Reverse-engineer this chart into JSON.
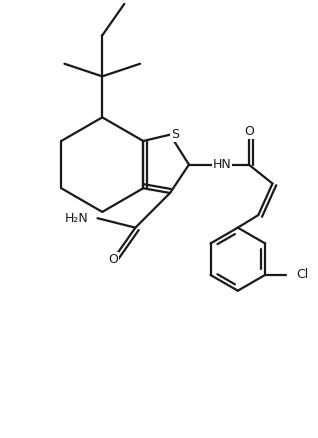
{
  "bg_color": "#ffffff",
  "line_color": "#1a1a1a",
  "line_width": 1.6,
  "figsize": [
    3.18,
    4.38
  ],
  "dpi": 100,
  "xlim": [
    0,
    10
  ],
  "ylim": [
    0,
    13.75
  ]
}
